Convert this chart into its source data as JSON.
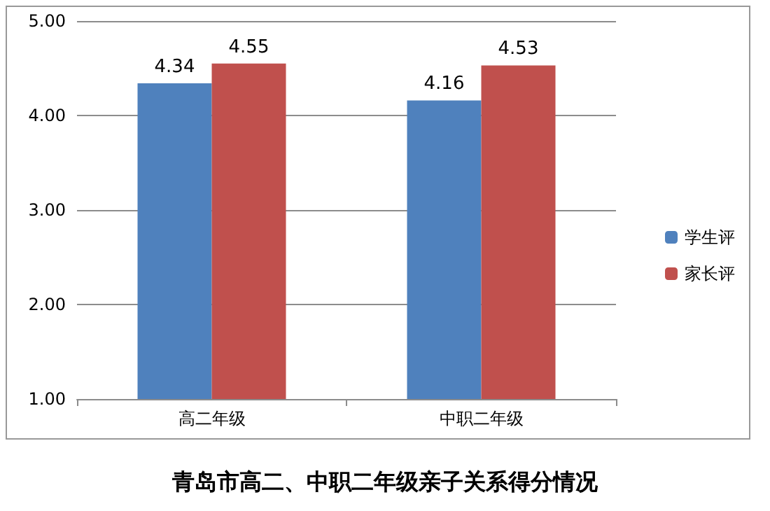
{
  "chart_data": {
    "type": "bar",
    "title": "青岛市高二、中职二年级亲子关系得分情况",
    "categories": [
      "高二年级",
      "中职二年级"
    ],
    "series": [
      {
        "name": "学生评",
        "color": "#4f81bd",
        "values": [
          4.34,
          4.16
        ]
      },
      {
        "name": "家长评",
        "color": "#c0504d",
        "values": [
          4.55,
          4.53
        ]
      }
    ],
    "ylim": [
      1,
      5
    ],
    "yticks": [
      {
        "value": 1,
        "label": "1.00"
      },
      {
        "value": 2,
        "label": "2.00"
      },
      {
        "value": 3,
        "label": "3.00"
      },
      {
        "value": 4,
        "label": "4.00"
      },
      {
        "value": 5,
        "label": "5.00"
      }
    ],
    "grid": "y",
    "legend": "right",
    "data_labels": true
  }
}
